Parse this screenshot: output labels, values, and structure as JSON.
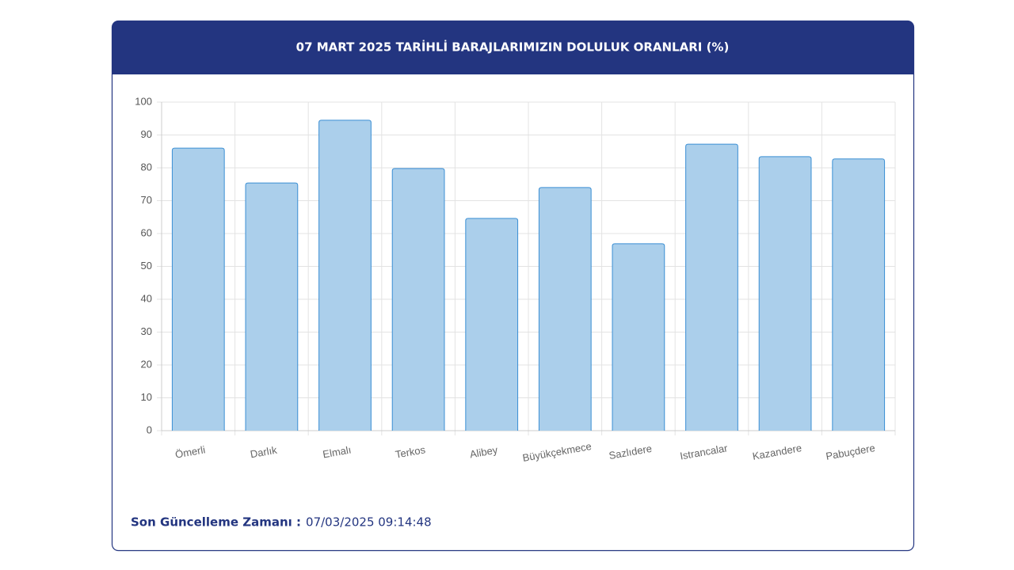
{
  "chart_data": {
    "type": "bar",
    "title": "07 MART 2025 TARİHLİ BARAJLARIMIZIN DOLULUK ORANLARI (%)",
    "categories": [
      "Ömerli",
      "Darlık",
      "Elmalı",
      "Terkos",
      "Alibey",
      "Büyükçekmece",
      "Sazlıdere",
      "Istrancalar",
      "Kazandere",
      "Pabuçdere"
    ],
    "values": [
      86.0,
      75.4,
      94.5,
      79.8,
      64.6,
      74.0,
      56.9,
      87.2,
      83.4,
      82.7
    ],
    "color": "#abcfeb",
    "ylim": [
      0,
      100
    ],
    "yticks": [
      0,
      10,
      20,
      30,
      40,
      50,
      60,
      70,
      80,
      90,
      100
    ],
    "grid": true
  },
  "footer": {
    "label": "Son Güncelleme Zamanı :",
    "value": "07/03/2025 09:14:48"
  }
}
